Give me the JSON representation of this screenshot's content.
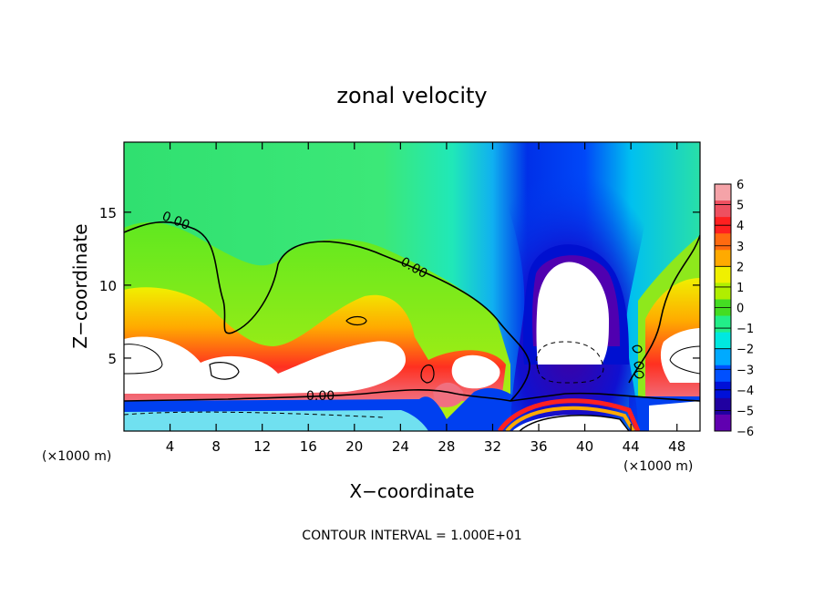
{
  "chart_data": {
    "type": "heatmap",
    "title": "zonal velocity",
    "xlabel": "X−coordinate",
    "ylabel": "Z−coordinate",
    "x_unit_left": "(×1000 m)",
    "x_unit_right": "(×1000 m)",
    "footer": "CONTOUR INTERVAL = 1.000E+01",
    "xlim": [
      0,
      50
    ],
    "ylim": [
      0,
      19.8
    ],
    "x_ticks": [
      4,
      8,
      12,
      16,
      20,
      24,
      28,
      32,
      36,
      40,
      44,
      48
    ],
    "y_ticks": [
      5,
      10,
      15
    ],
    "contour_labels": [
      "0.00",
      "0.00",
      "0.00"
    ],
    "colorbar": {
      "ticks": [
        "6",
        "5",
        "4",
        "3",
        "2",
        "1",
        "0",
        "−1",
        "−2",
        "−3",
        "−4",
        "−5",
        "−6"
      ],
      "colors": [
        "#f5a3a8",
        "#ee5060",
        "#ff2020",
        "#ff6a10",
        "#ffaa00",
        "#f0f000",
        "#b0ee00",
        "#44dd22",
        "#22ee88",
        "#00e8e0",
        "#00aaff",
        "#0050ff",
        "#0010d8",
        "#2000a0",
        "#6000b0"
      ]
    }
  }
}
